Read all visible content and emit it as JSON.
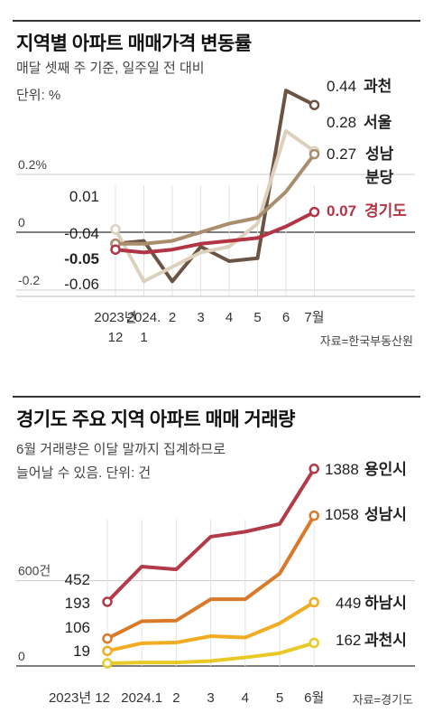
{
  "chart_data": [
    {
      "type": "line",
      "title": "지역별 아파트 매매가격 변동률",
      "subtitle": "매달 셋째 주 기준, 일주일 전 대비",
      "unit_label": "단위: %",
      "y_tick_labels": [
        "0.2%",
        "0",
        "-0.2"
      ],
      "y_ticks": [
        0.2,
        0,
        -0.2
      ],
      "ylim": [
        -0.25,
        0.5
      ],
      "categories": [
        "2023년 12",
        "2024. 1",
        "2",
        "3",
        "4",
        "5",
        "6",
        "7월"
      ],
      "category_lines": [
        [
          "2023년",
          "12"
        ],
        [
          "2024.",
          "1"
        ],
        [
          "2"
        ],
        [
          "3"
        ],
        [
          "4"
        ],
        [
          "5"
        ],
        [
          "6"
        ],
        [
          "7월"
        ]
      ],
      "series": [
        {
          "name": "과천",
          "values": [
            -0.04,
            -0.03,
            -0.17,
            -0.05,
            -0.1,
            -0.09,
            0.49,
            0.44
          ],
          "first_label": "",
          "last_label": "0.44",
          "color": "#6b5444",
          "bold": false
        },
        {
          "name": "서울",
          "values": [
            0.01,
            -0.17,
            -0.12,
            -0.07,
            -0.05,
            0.03,
            0.35,
            0.28
          ],
          "first_label": "0.01",
          "last_label": "0.28",
          "color": "#ddd0bd",
          "bold": false
        },
        {
          "name": "성남 분당",
          "values": [
            -0.04,
            -0.04,
            -0.03,
            0.0,
            0.03,
            0.05,
            0.14,
            0.27
          ],
          "first_label": "-0.04",
          "last_label": "0.27",
          "color": "#a98d6d",
          "bold": false
        },
        {
          "name": "경기도",
          "values": [
            -0.06,
            -0.07,
            -0.06,
            -0.04,
            -0.03,
            -0.02,
            0.02,
            0.07
          ],
          "first_label": "-0.06",
          "last_label": "0.07",
          "color": "#b33444",
          "bold": true
        }
      ],
      "extra_label": "-0.05",
      "source": "자료=한국부동산원"
    },
    {
      "type": "line",
      "title": "경기도 주요 지역 아파트 매매 거래량",
      "subtitle_lines": [
        "6월 거래량은 이달 말까지 집계하므로",
        "늘어날 수 있음. 단위: 건"
      ],
      "y_tick_labels": [
        "600건",
        "0"
      ],
      "y_ticks": [
        600,
        0
      ],
      "ylim": [
        0,
        1450
      ],
      "categories": [
        "2023년 12",
        "2024.1",
        "2",
        "3",
        "4",
        "5",
        "6월"
      ],
      "series": [
        {
          "name": "용인시",
          "values": [
            452,
            700,
            680,
            910,
            945,
            1000,
            1388
          ],
          "first_label": "452",
          "last_label": "1388",
          "color": "#b33a48"
        },
        {
          "name": "성남시",
          "values": [
            193,
            315,
            320,
            470,
            470,
            650,
            1058
          ],
          "first_label": "193",
          "last_label": "1058",
          "color": "#d97a2b"
        },
        {
          "name": "하남시",
          "values": [
            106,
            160,
            165,
            210,
            200,
            300,
            449
          ],
          "first_label": "106",
          "last_label": "449",
          "color": "#f1ac22"
        },
        {
          "name": "과천시",
          "values": [
            19,
            25,
            25,
            35,
            60,
            90,
            162
          ],
          "first_label": "19",
          "last_label": "162",
          "color": "#e9c926"
        }
      ],
      "source": "자료=경기도"
    }
  ]
}
